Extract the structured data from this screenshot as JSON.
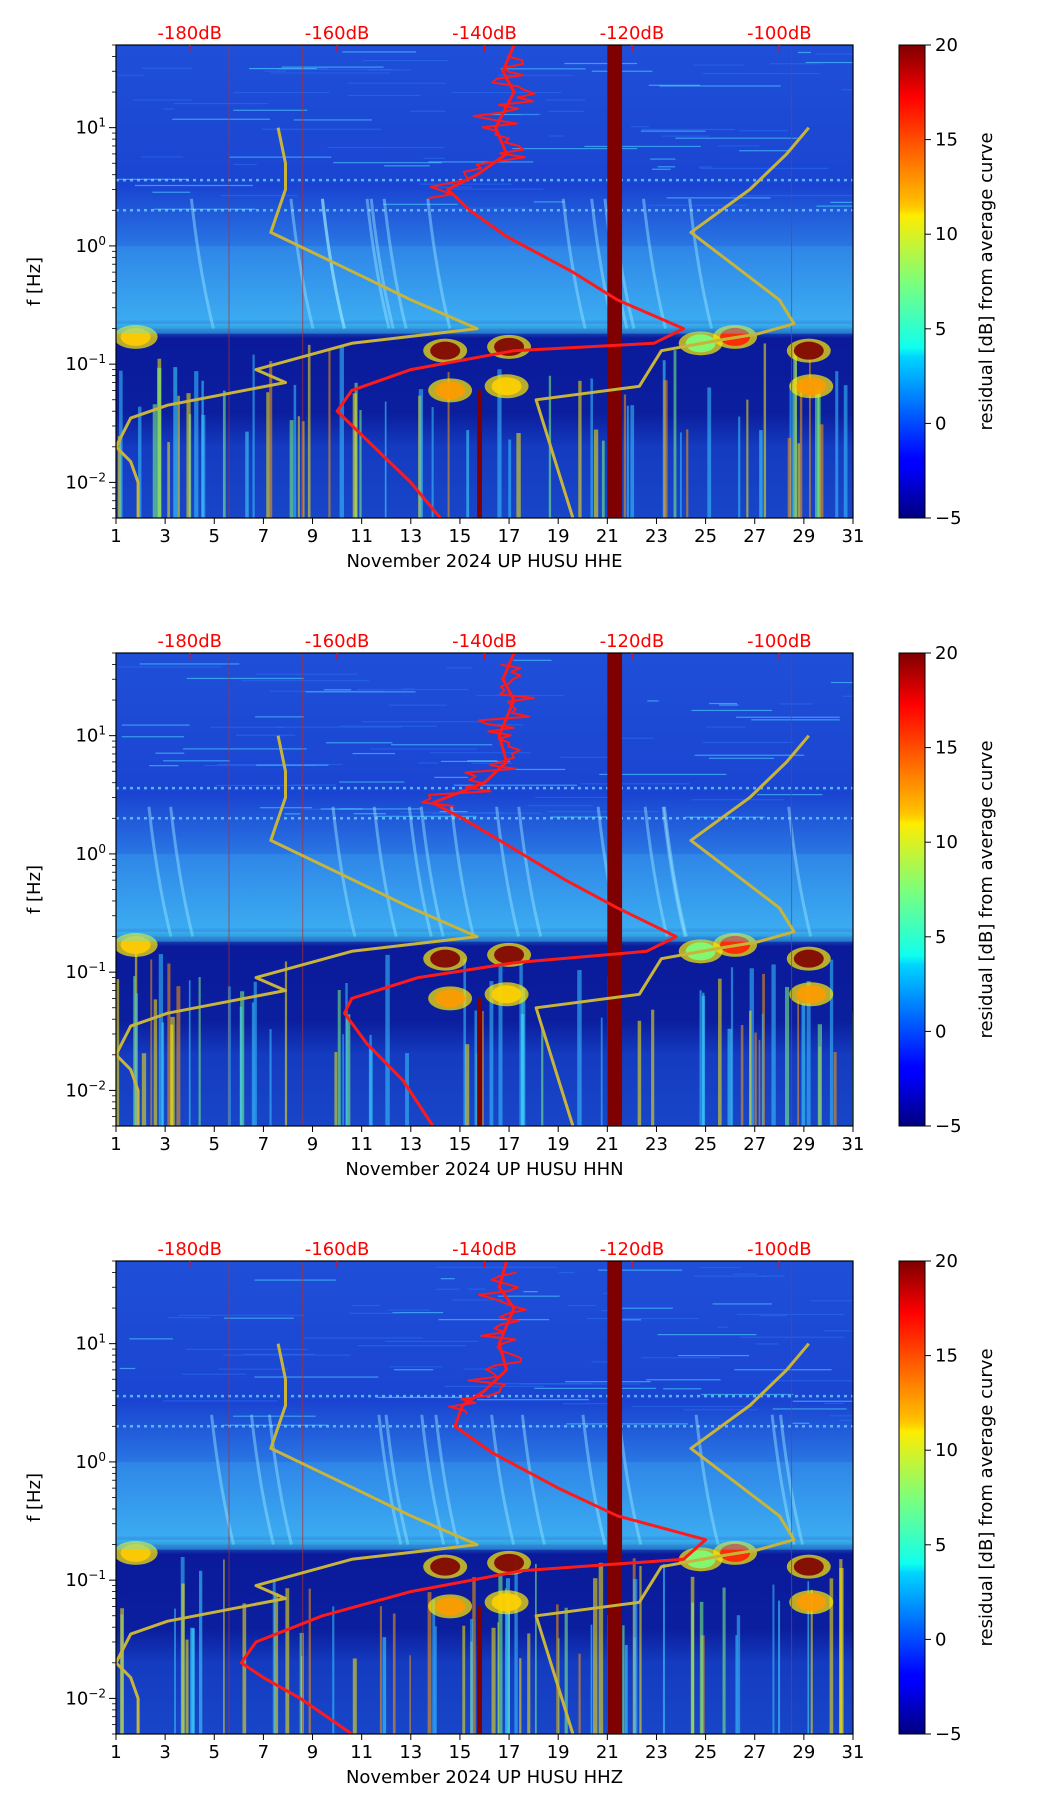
{
  "figure_title": "",
  "colors": {
    "power_curve": "#ff1a1a",
    "model_curve": "#c8b43a",
    "top_axis_text": "#ff0000"
  },
  "colorbar": {
    "label": "residual [dB] from average curve",
    "min": -5,
    "max": 20,
    "ticks": [
      "20",
      "15",
      "10",
      "5",
      "0",
      "−5"
    ],
    "tick_values": [
      20,
      15,
      10,
      5,
      0,
      -5
    ]
  },
  "chart_data": [
    {
      "type": "heatmap",
      "title": "",
      "xlabel": "November 2024 UP HUSU  HHE",
      "ylabel": "f [Hz]",
      "x_ticks": [
        "1",
        "3",
        "5",
        "7",
        "9",
        "11",
        "13",
        "15",
        "17",
        "19",
        "21",
        "23",
        "25",
        "27",
        "29",
        "31"
      ],
      "x_range": [
        1,
        31
      ],
      "y_scale": "log",
      "y_range": [
        0.005,
        50
      ],
      "y_ticks": [
        {
          "exp": "1"
        },
        {
          "exp": "0"
        },
        {
          "exp": "−1"
        },
        {
          "exp": "−2"
        }
      ],
      "y_tick_values": [
        10,
        1,
        0.1,
        0.01
      ],
      "top_axis_labels": [
        "-180dB",
        "-160dB",
        "-140dB",
        "-120dB",
        "-100dB"
      ],
      "top_axis_values": [
        -180,
        -160,
        -140,
        -120,
        -100
      ],
      "top_axis_range": [
        -190,
        -90
      ],
      "power_curve_db": [
        [
          -136,
          50
        ],
        [
          -137.5,
          30
        ],
        [
          -136,
          20
        ],
        [
          -138.5,
          10
        ],
        [
          -137,
          6
        ],
        [
          -141,
          4
        ],
        [
          -145,
          3
        ],
        [
          -142,
          2
        ],
        [
          -137,
          1.2
        ],
        [
          -128,
          0.6
        ],
        [
          -122,
          0.35
        ],
        [
          -113,
          0.2
        ],
        [
          -117,
          0.15
        ],
        [
          -136,
          0.13
        ],
        [
          -150,
          0.09
        ],
        [
          -158,
          0.06
        ],
        [
          -160,
          0.04
        ],
        [
          -155,
          0.02
        ],
        [
          -150,
          0.01
        ],
        [
          -146,
          0.005
        ]
      ],
      "low_model_db": [
        [
          -168,
          10
        ],
        [
          -167,
          5
        ],
        [
          -167,
          3
        ],
        [
          -169,
          1.3
        ],
        [
          -160,
          0.7
        ],
        [
          -150,
          0.35
        ],
        [
          -141,
          0.2
        ],
        [
          -158,
          0.15
        ],
        [
          -171,
          0.09
        ],
        [
          -167,
          0.07
        ],
        [
          -183,
          0.045
        ],
        [
          -188,
          0.035
        ],
        [
          -190,
          0.02
        ],
        [
          -188,
          0.015
        ],
        [
          -187,
          0.01
        ],
        [
          -187,
          0.005
        ]
      ],
      "high_model_db": [
        [
          -96,
          10
        ],
        [
          -99,
          6
        ],
        [
          -104,
          3
        ],
        [
          -112,
          1.3
        ],
        [
          -100,
          0.35
        ],
        [
          -98,
          0.22
        ],
        [
          -103,
          0.18
        ],
        [
          -108,
          0.16
        ],
        [
          -116,
          0.13
        ],
        [
          -119,
          0.065
        ],
        [
          -133,
          0.05
        ],
        [
          -128,
          0.005
        ]
      ],
      "dark_band_day": [
        21,
        21.6
      ],
      "dark_thin_band_day": [
        15.7,
        15.9
      ]
    },
    {
      "type": "heatmap",
      "title": "",
      "xlabel": "November 2024 UP HUSU  HHN",
      "ylabel": "f [Hz]",
      "x_ticks": [
        "1",
        "3",
        "5",
        "7",
        "9",
        "11",
        "13",
        "15",
        "17",
        "19",
        "21",
        "23",
        "25",
        "27",
        "29",
        "31"
      ],
      "x_range": [
        1,
        31
      ],
      "y_scale": "log",
      "y_range": [
        0.005,
        50
      ],
      "y_ticks": [
        {
          "exp": "1"
        },
        {
          "exp": "0"
        },
        {
          "exp": "−1"
        },
        {
          "exp": "−2"
        }
      ],
      "y_tick_values": [
        10,
        1,
        0.1,
        0.01
      ],
      "top_axis_labels": [
        "-180dB",
        "-160dB",
        "-140dB",
        "-120dB",
        "-100dB"
      ],
      "top_axis_values": [
        -180,
        -160,
        -140,
        -120,
        -100
      ],
      "top_axis_range": [
        -190,
        -90
      ],
      "power_curve_db": [
        [
          -136,
          50
        ],
        [
          -137.5,
          30
        ],
        [
          -136,
          20
        ],
        [
          -138,
          10
        ],
        [
          -137,
          6
        ],
        [
          -140,
          4
        ],
        [
          -147,
          2.7
        ],
        [
          -143,
          2
        ],
        [
          -137,
          1.2
        ],
        [
          -129,
          0.6
        ],
        [
          -122,
          0.35
        ],
        [
          -114,
          0.2
        ],
        [
          -118,
          0.15
        ],
        [
          -136,
          0.12
        ],
        [
          -149,
          0.09
        ],
        [
          -158,
          0.06
        ],
        [
          -159,
          0.045
        ],
        [
          -156,
          0.025
        ],
        [
          -151,
          0.012
        ],
        [
          -147,
          0.005
        ]
      ],
      "low_model_db": [
        [
          -168,
          10
        ],
        [
          -167,
          5
        ],
        [
          -167,
          3
        ],
        [
          -169,
          1.3
        ],
        [
          -160,
          0.7
        ],
        [
          -150,
          0.35
        ],
        [
          -141,
          0.2
        ],
        [
          -158,
          0.15
        ],
        [
          -171,
          0.09
        ],
        [
          -167,
          0.07
        ],
        [
          -183,
          0.045
        ],
        [
          -188,
          0.035
        ],
        [
          -190,
          0.02
        ],
        [
          -188,
          0.015
        ],
        [
          -187,
          0.01
        ],
        [
          -187,
          0.005
        ]
      ],
      "high_model_db": [
        [
          -96,
          10
        ],
        [
          -99,
          6
        ],
        [
          -104,
          3
        ],
        [
          -112,
          1.3
        ],
        [
          -100,
          0.35
        ],
        [
          -98,
          0.22
        ],
        [
          -103,
          0.18
        ],
        [
          -108,
          0.16
        ],
        [
          -116,
          0.13
        ],
        [
          -119,
          0.065
        ],
        [
          -133,
          0.05
        ],
        [
          -128,
          0.005
        ]
      ],
      "dark_band_day": [
        21,
        21.6
      ],
      "dark_thin_band_day": [
        15.7,
        15.9
      ]
    },
    {
      "type": "heatmap",
      "title": "",
      "xlabel": "November 2024 UP HUSU  HHZ",
      "ylabel": "f [Hz]",
      "x_ticks": [
        "1",
        "3",
        "5",
        "7",
        "9",
        "11",
        "13",
        "15",
        "17",
        "19",
        "21",
        "23",
        "25",
        "27",
        "29",
        "31"
      ],
      "x_range": [
        1,
        31
      ],
      "y_scale": "log",
      "y_range": [
        0.005,
        50
      ],
      "y_ticks": [
        {
          "exp": "1"
        },
        {
          "exp": "0"
        },
        {
          "exp": "−1"
        },
        {
          "exp": "−2"
        }
      ],
      "y_tick_values": [
        10,
        1,
        0.1,
        0.01
      ],
      "top_axis_labels": [
        "-180dB",
        "-160dB",
        "-140dB",
        "-120dB",
        "-100dB"
      ],
      "top_axis_values": [
        -180,
        -160,
        -140,
        -120,
        -100
      ],
      "top_axis_range": [
        -190,
        -90
      ],
      "power_curve_db": [
        [
          -137,
          50
        ],
        [
          -138,
          30
        ],
        [
          -136,
          20
        ],
        [
          -138,
          10
        ],
        [
          -137,
          6
        ],
        [
          -140,
          4
        ],
        [
          -143,
          3
        ],
        [
          -144,
          2
        ],
        [
          -139,
          1.2
        ],
        [
          -130,
          0.6
        ],
        [
          -122,
          0.35
        ],
        [
          -110,
          0.22
        ],
        [
          -113,
          0.15
        ],
        [
          -135,
          0.12
        ],
        [
          -150,
          0.08
        ],
        [
          -162,
          0.05
        ],
        [
          -171,
          0.03
        ],
        [
          -173,
          0.02
        ],
        [
          -170,
          0.015
        ],
        [
          -165,
          0.01
        ],
        [
          -158,
          0.005
        ]
      ],
      "low_model_db": [
        [
          -168,
          10
        ],
        [
          -167,
          5
        ],
        [
          -167,
          3
        ],
        [
          -169,
          1.3
        ],
        [
          -160,
          0.7
        ],
        [
          -150,
          0.35
        ],
        [
          -141,
          0.2
        ],
        [
          -158,
          0.15
        ],
        [
          -171,
          0.09
        ],
        [
          -167,
          0.07
        ],
        [
          -183,
          0.045
        ],
        [
          -188,
          0.035
        ],
        [
          -190,
          0.02
        ],
        [
          -188,
          0.015
        ],
        [
          -187,
          0.01
        ],
        [
          -187,
          0.005
        ]
      ],
      "high_model_db": [
        [
          -96,
          10
        ],
        [
          -99,
          6
        ],
        [
          -104,
          3
        ],
        [
          -112,
          1.3
        ],
        [
          -100,
          0.35
        ],
        [
          -98,
          0.22
        ],
        [
          -103,
          0.18
        ],
        [
          -108,
          0.16
        ],
        [
          -116,
          0.13
        ],
        [
          -119,
          0.065
        ],
        [
          -133,
          0.05
        ],
        [
          -128,
          0.005
        ]
      ],
      "dark_band_day": [
        21,
        21.6
      ],
      "dark_thin_band_day": [
        15.7,
        15.9
      ]
    }
  ]
}
